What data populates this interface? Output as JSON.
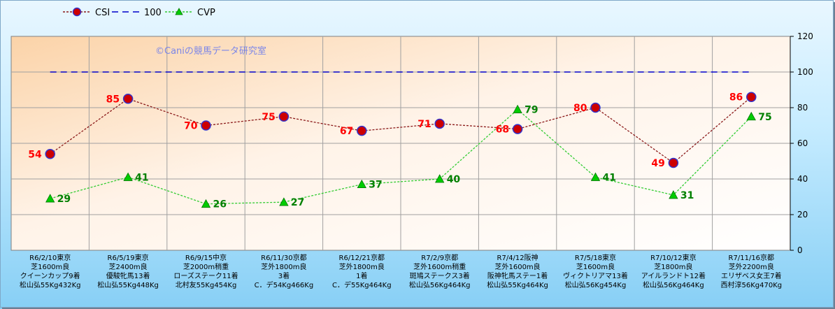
{
  "chart_data": {
    "type": "line",
    "watermark": "©Caniの競馬データ研究室",
    "categories": [
      [
        "R6/2/10東京",
        "芝1600m良",
        "クイーンカップ9着",
        "松山弘55Kg432Kg"
      ],
      [
        "R6/5/19東京",
        "芝2400m良",
        "優駿牝馬13着",
        "松山弘55Kg448Kg"
      ],
      [
        "R6/9/15中京",
        "芝2000m稍重",
        "ローズステーク11着",
        "北村友55Kg454Kg"
      ],
      [
        "R6/11/30京都",
        "芝外1800m良",
        "3着",
        "C．デ54Kg466Kg"
      ],
      [
        "R6/12/21京都",
        "芝外1800m良",
        "1着",
        "C．デ55Kg464Kg"
      ],
      [
        "R7/2/9京都",
        "芝外1600m稍重",
        "斑鳩ステークス3着",
        "松山弘56Kg464Kg"
      ],
      [
        "R7/4/12阪神",
        "芝外1600m良",
        "阪神牝馬ステー1着",
        "松山弘55Kg464Kg"
      ],
      [
        "R7/5/18東京",
        "芝1600m良",
        "ヴィクトリアマ13着",
        "松山弘56Kg454Kg"
      ],
      [
        "R7/10/12東京",
        "芝1800m良",
        "アイルランドト12着",
        "松山弘56Kg464Kg"
      ],
      [
        "R7/11/16京都",
        "芝外2200m良",
        "エリザベス女王7着",
        "西村淳56Kg470Kg"
      ]
    ],
    "series": [
      {
        "name": "CSI",
        "values": [
          54,
          85,
          70,
          75,
          67,
          71,
          68,
          80,
          49,
          86
        ],
        "color": "#cc0000",
        "line_color": "#8b1a1a",
        "label_color": "#ff0000",
        "marker": "circle"
      },
      {
        "name": "100",
        "values": [
          100,
          100,
          100,
          100,
          100,
          100,
          100,
          100,
          100,
          100
        ],
        "color": "#0000cc",
        "marker": "none"
      },
      {
        "name": "CVP",
        "values": [
          29,
          41,
          26,
          27,
          37,
          40,
          79,
          41,
          31,
          75
        ],
        "color": "#00cc00",
        "line_color": "#33cc33",
        "label_color": "#008000",
        "marker": "triangle"
      }
    ],
    "ylim": [
      0,
      120
    ],
    "yticks": [
      0,
      20,
      40,
      60,
      80,
      100,
      120
    ],
    "y_axis_side": "right",
    "grid": true,
    "legend_position": "top-left"
  }
}
